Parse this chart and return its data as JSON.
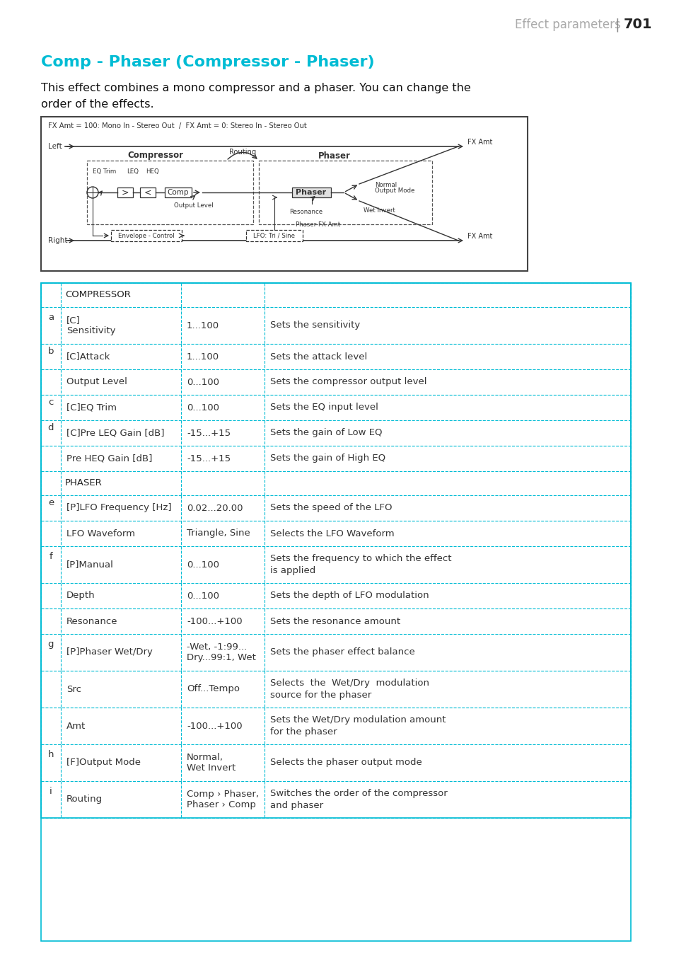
{
  "page_header": "Effect parameters",
  "page_number": "701",
  "title": "Comp - Phaser (Compressor - Phaser)",
  "title_color": "#00bcd4",
  "desc_line1": "This effect combines a mono compressor and a phaser. You can change the",
  "desc_line2": "order of the effects.",
  "diagram_label": "FX Amt = 100: Mono In - Stereo Out  /  FX Amt = 0: Stereo In - Stereo Out",
  "table_border_color": "#00bcd4",
  "sections": [
    {
      "section_name": "COMPRESSOR",
      "rows": [
        {
          "letter": "a",
          "param": "[C]\nSensitivity",
          "range": "1...100",
          "description": "Sets the sensitivity",
          "desc2": ""
        },
        {
          "letter": "b",
          "param": "[C]Attack",
          "range": "1...100",
          "description": "Sets the attack level",
          "desc2": ""
        },
        {
          "letter": "",
          "param": "Output Level",
          "range": "0...100",
          "description": "Sets the compressor output level",
          "desc2": ""
        },
        {
          "letter": "c",
          "param": "[C]EQ Trim",
          "range": "0...100",
          "description": "Sets the EQ input level",
          "desc2": ""
        },
        {
          "letter": "d",
          "param": "[C]Pre LEQ Gain [dB]",
          "range": "-15...+15",
          "description": "Sets the gain of Low EQ",
          "desc2": ""
        },
        {
          "letter": "",
          "param": "Pre HEQ Gain [dB]",
          "range": "-15...+15",
          "description": "Sets the gain of High EQ",
          "desc2": ""
        }
      ]
    },
    {
      "section_name": "PHASER",
      "rows": [
        {
          "letter": "e",
          "param": "[P]LFO Frequency [Hz]",
          "range": "0.02...20.00",
          "description": "Sets the speed of the LFO",
          "desc2": ""
        },
        {
          "letter": "",
          "param": "LFO Waveform",
          "range": "Triangle, Sine",
          "description": "Selects the LFO Waveform",
          "desc2": ""
        },
        {
          "letter": "f",
          "param": "[P]Manual",
          "range": "0...100",
          "description": "Sets the frequency to which the effect",
          "desc2": "is applied"
        },
        {
          "letter": "",
          "param": "Depth",
          "range": "0...100",
          "description": "Sets the depth of LFO modulation",
          "desc2": ""
        },
        {
          "letter": "",
          "param": "Resonance",
          "range": "-100...+100",
          "description": "Sets the resonance amount",
          "desc2": ""
        },
        {
          "letter": "g",
          "param": "[P]Phaser Wet/Dry",
          "range": "-Wet, -1:99...\nDry...99:1, Wet",
          "description": "Sets the phaser effect balance",
          "desc2": ""
        },
        {
          "letter": "",
          "param": "Src",
          "range": "Off...Tempo",
          "description": "Selects  the  Wet/Dry  modulation",
          "desc2": "source for the phaser"
        },
        {
          "letter": "",
          "param": "Amt",
          "range": "-100...+100",
          "description": "Sets the Wet/Dry modulation amount",
          "desc2": "for the phaser"
        },
        {
          "letter": "h",
          "param": "[F]Output Mode",
          "range": "Normal,\nWet Invert",
          "description": "Selects the phaser output mode",
          "desc2": ""
        },
        {
          "letter": "i",
          "param": "Routing",
          "range": "Comp › Phaser,\nPhaser › Comp",
          "description": "Switches the order of the compressor",
          "desc2": "and phaser"
        }
      ]
    }
  ]
}
